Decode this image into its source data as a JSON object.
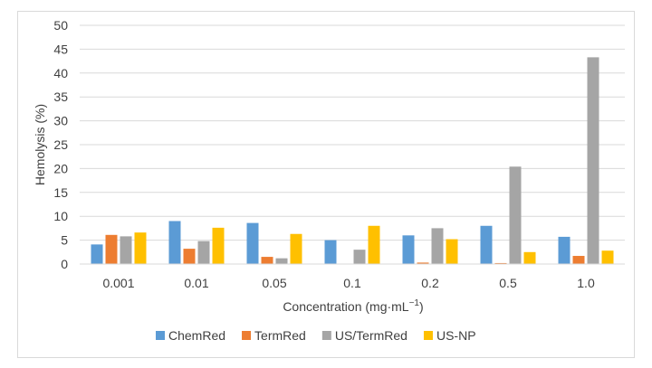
{
  "chart_data": {
    "type": "bar",
    "title": "",
    "xlabel_main": "Concentration (mg·mL",
    "xlabel_sup": "−1",
    "xlabel_tail": ")",
    "ylabel": "Hemolysis (%)",
    "ylim": [
      0,
      50
    ],
    "yticks": [
      "0",
      "5",
      "10",
      "15",
      "20",
      "25",
      "30",
      "35",
      "40",
      "45",
      "50"
    ],
    "categories": [
      "0.001",
      "0.01",
      "0.05",
      "0.1",
      "0.2",
      "0.5",
      "1.0"
    ],
    "grid": true,
    "legend_position": "bottom",
    "series": [
      {
        "name": "ChemRed",
        "color": "#5B9BD5",
        "values": [
          4.1,
          9.0,
          8.6,
          5.0,
          6.0,
          8.0,
          5.7
        ]
      },
      {
        "name": "TermRed",
        "color": "#ED7D31",
        "values": [
          6.1,
          3.2,
          1.5,
          0.0,
          0.3,
          0.2,
          1.7
        ]
      },
      {
        "name": "US/TermRed",
        "color": "#A5A5A5",
        "values": [
          5.8,
          4.8,
          1.2,
          3.0,
          7.5,
          20.4,
          43.3
        ]
      },
      {
        "name": "US-NP",
        "color": "#FFC000",
        "values": [
          6.6,
          7.6,
          6.3,
          8.0,
          5.2,
          2.5,
          2.8
        ]
      }
    ]
  }
}
